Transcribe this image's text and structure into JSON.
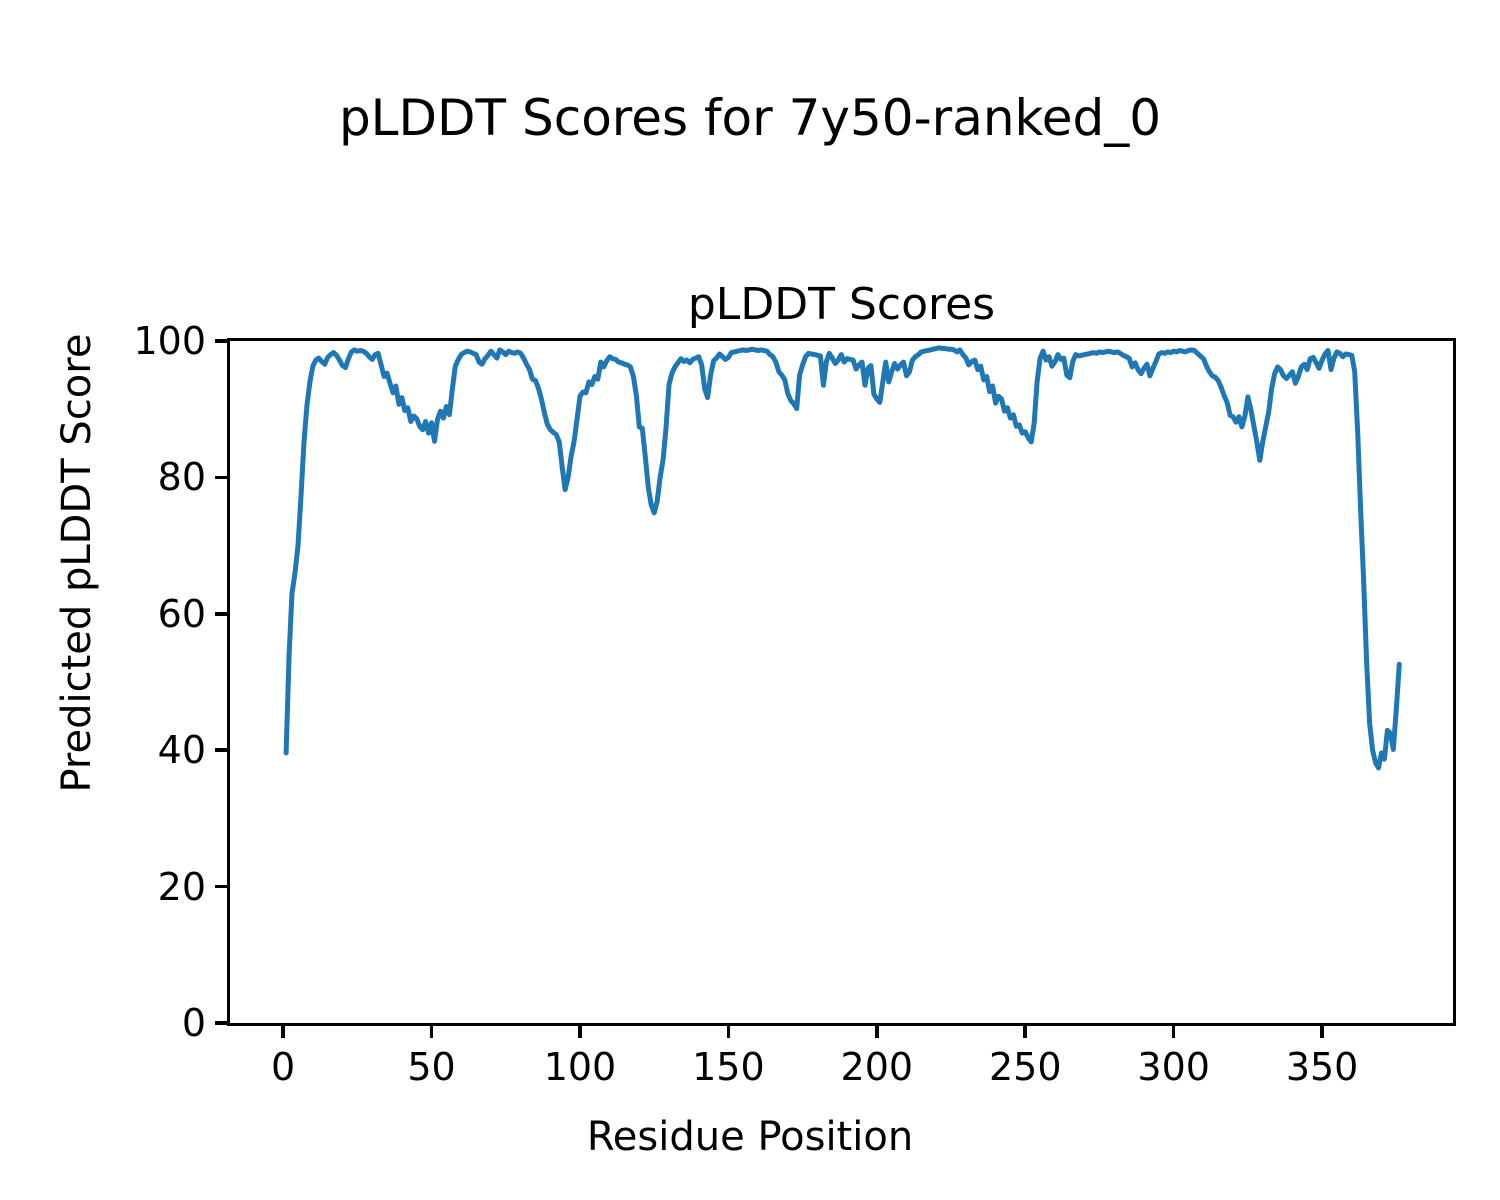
{
  "figure": {
    "suptitle": "pLDDT Scores for 7y50-ranked_0",
    "background_color": "#ffffff",
    "text_color": "#000000"
  },
  "chart_data": {
    "type": "line",
    "title": "pLDDT Scores",
    "xlabel": "Residue Position",
    "ylabel": "Predicted pLDDT Score",
    "xlim": [
      -17.9,
      394.1
    ],
    "ylim": [
      0,
      100
    ],
    "xticks": [
      0,
      50,
      100,
      150,
      200,
      250,
      300,
      350
    ],
    "yticks": [
      0,
      20,
      40,
      60,
      80,
      100
    ],
    "grid": false,
    "legend_position": "none",
    "line_color": "#1f77b4",
    "line_width": 5,
    "series": [
      {
        "name": "pLDDT",
        "x_start": 1,
        "x_step": 1,
        "values": [
          39.6,
          54,
          63,
          66,
          70,
          77,
          85,
          90.5,
          94,
          96.3,
          97.2,
          97.5,
          97.0,
          96.6,
          97.6,
          98.0,
          98.3,
          97.9,
          97.2,
          96.4,
          96.1,
          97.4,
          98.4,
          98.7,
          98.5,
          98.6,
          98.5,
          98.2,
          97.7,
          97.3,
          98.0,
          98.2,
          96.5,
          94.8,
          95.3,
          93.8,
          92.4,
          93.4,
          90.7,
          91.7,
          89.8,
          90.2,
          88.2,
          89.0,
          88.6,
          87.5,
          87.0,
          88.2,
          86.5,
          88.0,
          85.3,
          88.5,
          89.7,
          88.7,
          90.4,
          89.2,
          92.9,
          96.3,
          97.3,
          98.0,
          98.3,
          98.5,
          98.4,
          98.2,
          98.0,
          96.9,
          96.6,
          97.4,
          97.9,
          98.5,
          98.0,
          97.5,
          98.7,
          98.4,
          98.0,
          98.5,
          98.3,
          98.2,
          98.4,
          98.2,
          97.5,
          96.6,
          95.8,
          94.4,
          94.2,
          93.1,
          91.5,
          89.5,
          87.8,
          87.0,
          86.6,
          86.3,
          85.2,
          81.5,
          78.2,
          80.0,
          83.1,
          85.2,
          88.5,
          91.9,
          92.5,
          92.4,
          94.0,
          93.6,
          94.8,
          94.4,
          96.9,
          96.2,
          97.1,
          97.7,
          97.4,
          97.3,
          96.9,
          96.8,
          96.6,
          96.5,
          96.2,
          94.8,
          92.0,
          87.4,
          87.2,
          83.0,
          78.5,
          76.0,
          74.8,
          76.5,
          80.0,
          82.6,
          87.4,
          93.6,
          95.3,
          96.2,
          96.8,
          97.4,
          97.0,
          97.2,
          96.8,
          97.3,
          97.5,
          97.7,
          96.5,
          93.0,
          91.7,
          95.0,
          97.1,
          97.5,
          98.1,
          97.7,
          97.3,
          97.6,
          98.3,
          98.4,
          98.5,
          98.6,
          98.7,
          98.6,
          98.7,
          98.8,
          98.7,
          98.6,
          98.7,
          98.6,
          98.5,
          98.0,
          97.7,
          96.9,
          95.5,
          95.0,
          94.3,
          92.3,
          91.3,
          90.8,
          90.1,
          95.0,
          96.5,
          97.7,
          98.2,
          98.1,
          98.0,
          97.9,
          97.8,
          93.5,
          97.0,
          98.2,
          97.5,
          96.7,
          97.2,
          98.0,
          96.9,
          97.4,
          97.3,
          97.2,
          95.9,
          96.5,
          96.9,
          93.5,
          96.0,
          96.4,
          92.2,
          91.5,
          91.0,
          94.0,
          96.9,
          94.0,
          95.5,
          96.7,
          95.9,
          96.5,
          96.9,
          94.9,
          95.5,
          97.2,
          97.7,
          98.0,
          98.4,
          98.5,
          98.6,
          98.7,
          98.8,
          98.9,
          99.0,
          98.9,
          98.9,
          98.8,
          98.8,
          98.7,
          98.4,
          98.7,
          98.0,
          97.5,
          96.5,
          97.0,
          97.2,
          95.8,
          96.3,
          94.3,
          94.8,
          92.6,
          93.4,
          90.9,
          91.9,
          91.5,
          89.7,
          90.2,
          88.7,
          89.2,
          87.5,
          87.7,
          86.5,
          86.7,
          85.8,
          85.2,
          88.0,
          94.0,
          97.5,
          98.5,
          97.2,
          97.7,
          96.3,
          96.9,
          98.0,
          97.3,
          97.5,
          95.0,
          94.6,
          97.0,
          98.0,
          97.8,
          97.9,
          98.0,
          98.1,
          98.2,
          98.3,
          98.2,
          98.4,
          98.3,
          98.4,
          98.5,
          98.4,
          98.3,
          98.4,
          98.2,
          97.9,
          97.7,
          97.5,
          96.2,
          96.8,
          95.8,
          95.2,
          96.0,
          96.6,
          94.9,
          96.0,
          97.0,
          98.1,
          98.3,
          98.2,
          98.4,
          98.3,
          98.5,
          98.4,
          98.6,
          98.5,
          98.4,
          98.6,
          98.7,
          98.6,
          98.2,
          97.8,
          97.4,
          96.4,
          95.5,
          94.9,
          94.7,
          94.2,
          93.2,
          92.0,
          91.0,
          89.1,
          88.9,
          88.1,
          88.9,
          87.4,
          89.0,
          91.8,
          90.0,
          87.6,
          85.2,
          82.5,
          85.2,
          87.4,
          89.6,
          93.0,
          95.2,
          96.2,
          95.8,
          94.9,
          94.5,
          95.0,
          95.5,
          93.8,
          94.8,
          96.2,
          96.6,
          95.8,
          97.4,
          97.6,
          96.8,
          96.0,
          97.2,
          98.1,
          98.6,
          95.8,
          97.5,
          98.4,
          98.2,
          97.7,
          98.1,
          98.0,
          97.9,
          95.5,
          86.6,
          75.0,
          65.0,
          53.0,
          44.0,
          40.0,
          38.2,
          37.4,
          39.6,
          38.7,
          42.9,
          42.5,
          40.1,
          46.0,
          52.6
        ]
      }
    ]
  }
}
